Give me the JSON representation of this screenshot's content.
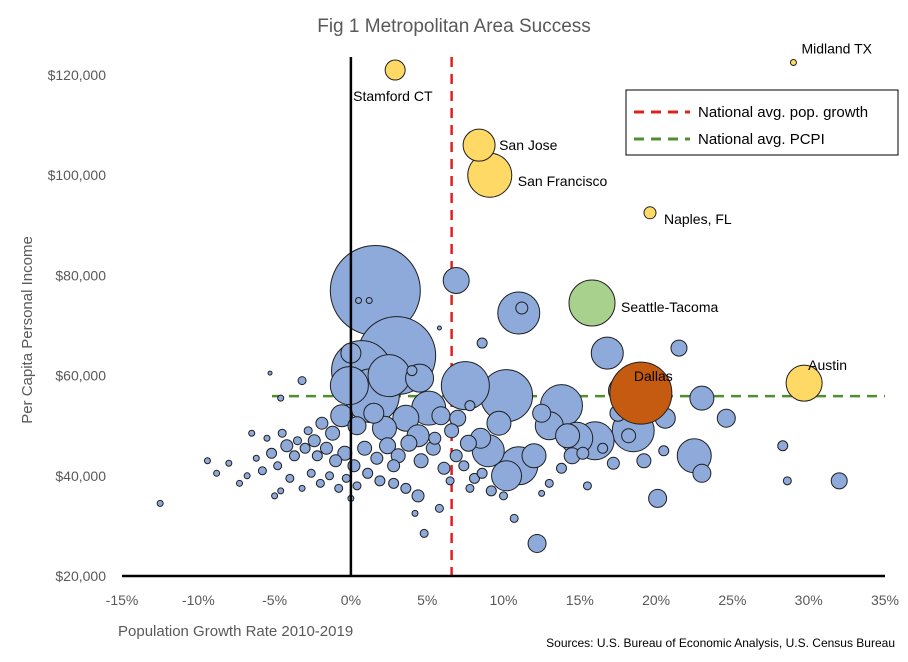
{
  "chart_data": {
    "type": "scatter",
    "title": "Fig 1 Metropolitan Area Success",
    "xlabel": "Population Growth Rate 2010-2019",
    "ylabel": "Per Capita Personal Income",
    "source": "Sources: U.S. Bureau of Economic Analysis, U.S. Census Bureau",
    "xlim": [
      -0.15,
      0.35
    ],
    "ylim": [
      20000,
      125000
    ],
    "x_ticks": [
      -0.15,
      -0.1,
      -0.05,
      0,
      0.05,
      0.1,
      0.15,
      0.2,
      0.25,
      0.3,
      0.35
    ],
    "x_tick_labels": [
      "-15%",
      "-10%",
      "-5%",
      "0%",
      "5%",
      "10%",
      "15%",
      "20%",
      "25%",
      "30%",
      "35%"
    ],
    "y_ticks": [
      20000,
      40000,
      60000,
      80000,
      100000,
      120000
    ],
    "y_tick_labels": [
      "$20,000",
      "$40,000",
      "$60,000",
      "$80,000",
      "$100,000",
      "$120,000"
    ],
    "reference_lines": [
      {
        "name": "National avg. pop. growth",
        "axis": "x",
        "value": 0.066,
        "color": "#e02020",
        "style": "dashed"
      },
      {
        "name": "National avg. PCPI",
        "axis": "y",
        "value": 55900,
        "color": "#4f8f2f",
        "style": "dashed"
      }
    ],
    "legend": {
      "placement": "top-right"
    },
    "colors": {
      "default": "#8eaadb",
      "highlight": "#ffd966",
      "seattle": "#a9d18e",
      "dallas": "#c55a11",
      "outline": "#1f1f1f"
    },
    "labeled_points": [
      {
        "label": "Midland TX",
        "x": 0.29,
        "y": 122500,
        "size": 3,
        "color": "#ffd966"
      },
      {
        "label": "Stamford CT",
        "x": 0.029,
        "y": 121000,
        "size": 10,
        "color": "#ffd966"
      },
      {
        "label": "San Jose",
        "x": 0.084,
        "y": 106000,
        "size": 16,
        "color": "#ffd966"
      },
      {
        "label": "San Francisco",
        "x": 0.091,
        "y": 100000,
        "size": 22,
        "color": "#ffd966"
      },
      {
        "label": "Naples, FL",
        "x": 0.196,
        "y": 92500,
        "size": 6,
        "color": "#ffd966"
      },
      {
        "label": "Seattle-Tacoma",
        "x": 0.158,
        "y": 74500,
        "size": 23,
        "color": "#a9d18e"
      },
      {
        "label": "Austin",
        "x": 0.297,
        "y": 58500,
        "size": 18,
        "color": "#ffd966"
      },
      {
        "label": "Dallas",
        "x": 0.19,
        "y": 56500,
        "size": 31,
        "color": "#c55a11"
      }
    ],
    "points": [
      [
        0.016,
        77000,
        45
      ],
      [
        0.03,
        64000,
        39
      ],
      [
        0.007,
        61000,
        30
      ],
      [
        0.069,
        79000,
        13
      ],
      [
        0.11,
        72500,
        21
      ],
      [
        0.168,
        64500,
        16
      ],
      [
        0.102,
        56000,
        26
      ],
      [
        0.138,
        54000,
        21
      ],
      [
        0.075,
        58000,
        24
      ],
      [
        0.051,
        53500,
        17
      ],
      [
        0.014,
        56000,
        27
      ],
      [
        0.025,
        60000,
        21
      ],
      [
        -0.001,
        58000,
        19
      ],
      [
        0.045,
        59500,
        14
      ],
      [
        0.0,
        64500,
        10
      ],
      [
        0.112,
        73500,
        6
      ],
      [
        0.086,
        66500,
        5
      ],
      [
        0.215,
        65500,
        8
      ],
      [
        0.23,
        55500,
        12
      ],
      [
        0.178,
        57000,
        14
      ],
      [
        0.185,
        49000,
        21
      ],
      [
        0.16,
        47000,
        19
      ],
      [
        0.206,
        51500,
        10
      ],
      [
        0.148,
        47500,
        16
      ],
      [
        0.13,
        50000,
        14
      ],
      [
        0.11,
        42000,
        19
      ],
      [
        0.09,
        45000,
        16
      ],
      [
        0.12,
        44000,
        12
      ],
      [
        0.102,
        40000,
        15
      ],
      [
        0.225,
        44000,
        17
      ],
      [
        0.23,
        40500,
        9
      ],
      [
        0.246,
        51500,
        9
      ],
      [
        0.201,
        35500,
        9
      ],
      [
        0.122,
        26500,
        9
      ],
      [
        0.32,
        39000,
        8
      ],
      [
        0.283,
        46000,
        5
      ],
      [
        0.286,
        39000,
        4
      ],
      [
        0.155,
        38000,
        4
      ],
      [
        0.172,
        42500,
        6
      ],
      [
        0.205,
        45000,
        5
      ],
      [
        0.142,
        48000,
        12
      ],
      [
        0.097,
        50500,
        12
      ],
      [
        0.085,
        47500,
        10
      ],
      [
        0.077,
        46500,
        8
      ],
      [
        0.066,
        49000,
        7
      ],
      [
        0.059,
        52000,
        9
      ],
      [
        0.044,
        48000,
        11
      ],
      [
        0.036,
        51500,
        13
      ],
      [
        0.022,
        49500,
        12
      ],
      [
        0.015,
        52500,
        10
      ],
      [
        0.004,
        50000,
        9
      ],
      [
        -0.006,
        52000,
        11
      ],
      [
        -0.012,
        48500,
        7
      ],
      [
        -0.019,
        50500,
        6
      ],
      [
        -0.024,
        47000,
        6
      ],
      [
        -0.03,
        45500,
        5
      ],
      [
        -0.037,
        44000,
        5
      ],
      [
        -0.042,
        46000,
        6
      ],
      [
        -0.048,
        42000,
        4
      ],
      [
        -0.052,
        44500,
        5
      ],
      [
        -0.058,
        41000,
        4
      ],
      [
        -0.062,
        43500,
        3
      ],
      [
        -0.068,
        40000,
        3
      ],
      [
        -0.073,
        38500,
        3
      ],
      [
        -0.08,
        42500,
        3
      ],
      [
        -0.088,
        40500,
        3
      ],
      [
        -0.094,
        43000,
        3
      ],
      [
        -0.125,
        34500,
        3
      ],
      [
        -0.055,
        47500,
        3
      ],
      [
        -0.045,
        48500,
        4
      ],
      [
        -0.035,
        47000,
        4
      ],
      [
        -0.028,
        49000,
        4
      ],
      [
        -0.022,
        44000,
        5
      ],
      [
        -0.016,
        45500,
        6
      ],
      [
        -0.01,
        43000,
        6
      ],
      [
        -0.004,
        44500,
        7
      ],
      [
        0.002,
        42000,
        6
      ],
      [
        0.009,
        45500,
        7
      ],
      [
        0.017,
        43500,
        6
      ],
      [
        0.024,
        46000,
        8
      ],
      [
        0.031,
        44000,
        7
      ],
      [
        0.038,
        46500,
        8
      ],
      [
        0.046,
        43000,
        7
      ],
      [
        0.054,
        45500,
        7
      ],
      [
        0.061,
        41500,
        6
      ],
      [
        0.069,
        44000,
        6
      ],
      [
        0.074,
        42000,
        5
      ],
      [
        0.081,
        39500,
        5
      ],
      [
        0.092,
        37000,
        5
      ],
      [
        0.1,
        36000,
        4
      ],
      [
        0.107,
        31500,
        4
      ],
      [
        0.058,
        33500,
        4
      ],
      [
        0.044,
        36000,
        6
      ],
      [
        0.036,
        37500,
        5
      ],
      [
        0.028,
        38500,
        5
      ],
      [
        0.019,
        39000,
        5
      ],
      [
        0.011,
        40500,
        5
      ],
      [
        0.004,
        38000,
        4
      ],
      [
        -0.003,
        39500,
        4
      ],
      [
        -0.008,
        37500,
        4
      ],
      [
        -0.014,
        40000,
        4
      ],
      [
        -0.02,
        38500,
        4
      ],
      [
        -0.026,
        40500,
        4
      ],
      [
        -0.032,
        37500,
        3
      ],
      [
        -0.04,
        39500,
        4
      ],
      [
        -0.046,
        37000,
        3
      ],
      [
        -0.05,
        36000,
        3
      ],
      [
        0.048,
        28500,
        4
      ],
      [
        0.042,
        32500,
        3
      ],
      [
        0.078,
        37500,
        4
      ],
      [
        0.086,
        40500,
        5
      ],
      [
        0.125,
        36500,
        3
      ],
      [
        0.13,
        38500,
        4
      ],
      [
        0.138,
        41500,
        5
      ],
      [
        0.152,
        44500,
        6
      ],
      [
        0.165,
        45500,
        5
      ],
      [
        0.182,
        48000,
        7
      ],
      [
        0.192,
        43000,
        7
      ],
      [
        0.0,
        35500,
        3
      ],
      [
        -0.065,
        48500,
        3
      ],
      [
        -0.046,
        55500,
        3
      ],
      [
        -0.053,
        60500,
        2
      ],
      [
        -0.032,
        59000,
        4
      ],
      [
        0.04,
        61000,
        5
      ],
      [
        0.078,
        54000,
        5
      ],
      [
        0.005,
        75000,
        3
      ],
      [
        0.012,
        75000,
        3
      ],
      [
        0.058,
        69500,
        2
      ],
      [
        0.175,
        52500,
        8
      ],
      [
        0.125,
        52500,
        9
      ],
      [
        0.145,
        44000,
        8
      ],
      [
        0.065,
        39000,
        4
      ],
      [
        0.028,
        42000,
        6
      ],
      [
        0.07,
        51500,
        8
      ],
      [
        0.055,
        47500,
        6
      ]
    ]
  }
}
